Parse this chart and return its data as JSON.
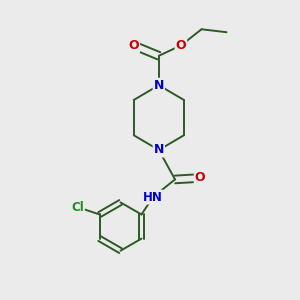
{
  "background_color": "#ebebeb",
  "bond_color": "#2d5a27",
  "atom_colors": {
    "N": "#0000cc",
    "O": "#cc0000",
    "Cl": "#228B22",
    "H": "#777777",
    "C": "#2d5a27"
  },
  "figsize": [
    3.0,
    3.0
  ],
  "dpi": 100
}
